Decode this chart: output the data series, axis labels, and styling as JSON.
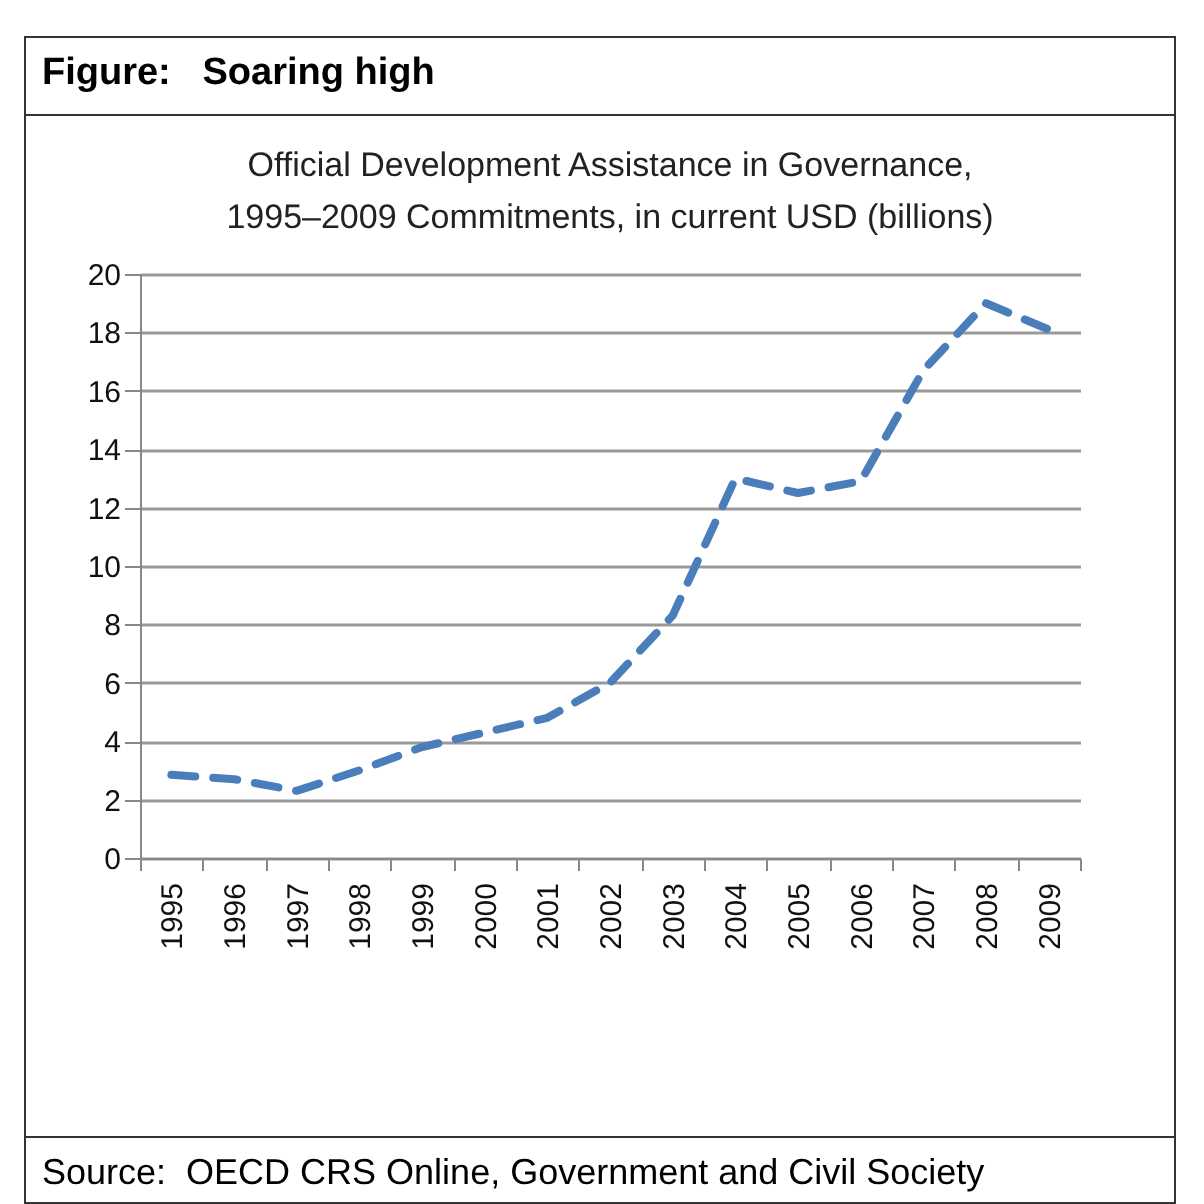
{
  "chart_data": {
    "type": "line",
    "title": "Figure:   Soaring high",
    "subtitle": "Official Development Assistance in Governance,\n1995–2009 Commitments, in current USD (billions)",
    "categories": [
      "1995",
      "1996",
      "1997",
      "1998",
      "1999",
      "2000",
      "2001",
      "2002",
      "2003",
      "2004",
      "2005",
      "2006",
      "2007",
      "2008",
      "2009"
    ],
    "series": [
      {
        "color": "#4a7ebb",
        "values": [
          2.85,
          2.7,
          2.3,
          3.0,
          3.8,
          4.3,
          4.8,
          6.0,
          8.3,
          13.0,
          12.5,
          12.9,
          16.7,
          19.0,
          18.1
        ]
      }
    ],
    "ylim": [
      0,
      20
    ],
    "yticks": [
      0,
      2,
      4,
      6,
      8,
      10,
      12,
      14,
      16,
      18,
      20
    ],
    "grid": "y",
    "line_style": "dashed",
    "marker": "none",
    "annotations": [
      "Source:  OECD CRS Online, Government and Civil Society"
    ]
  }
}
